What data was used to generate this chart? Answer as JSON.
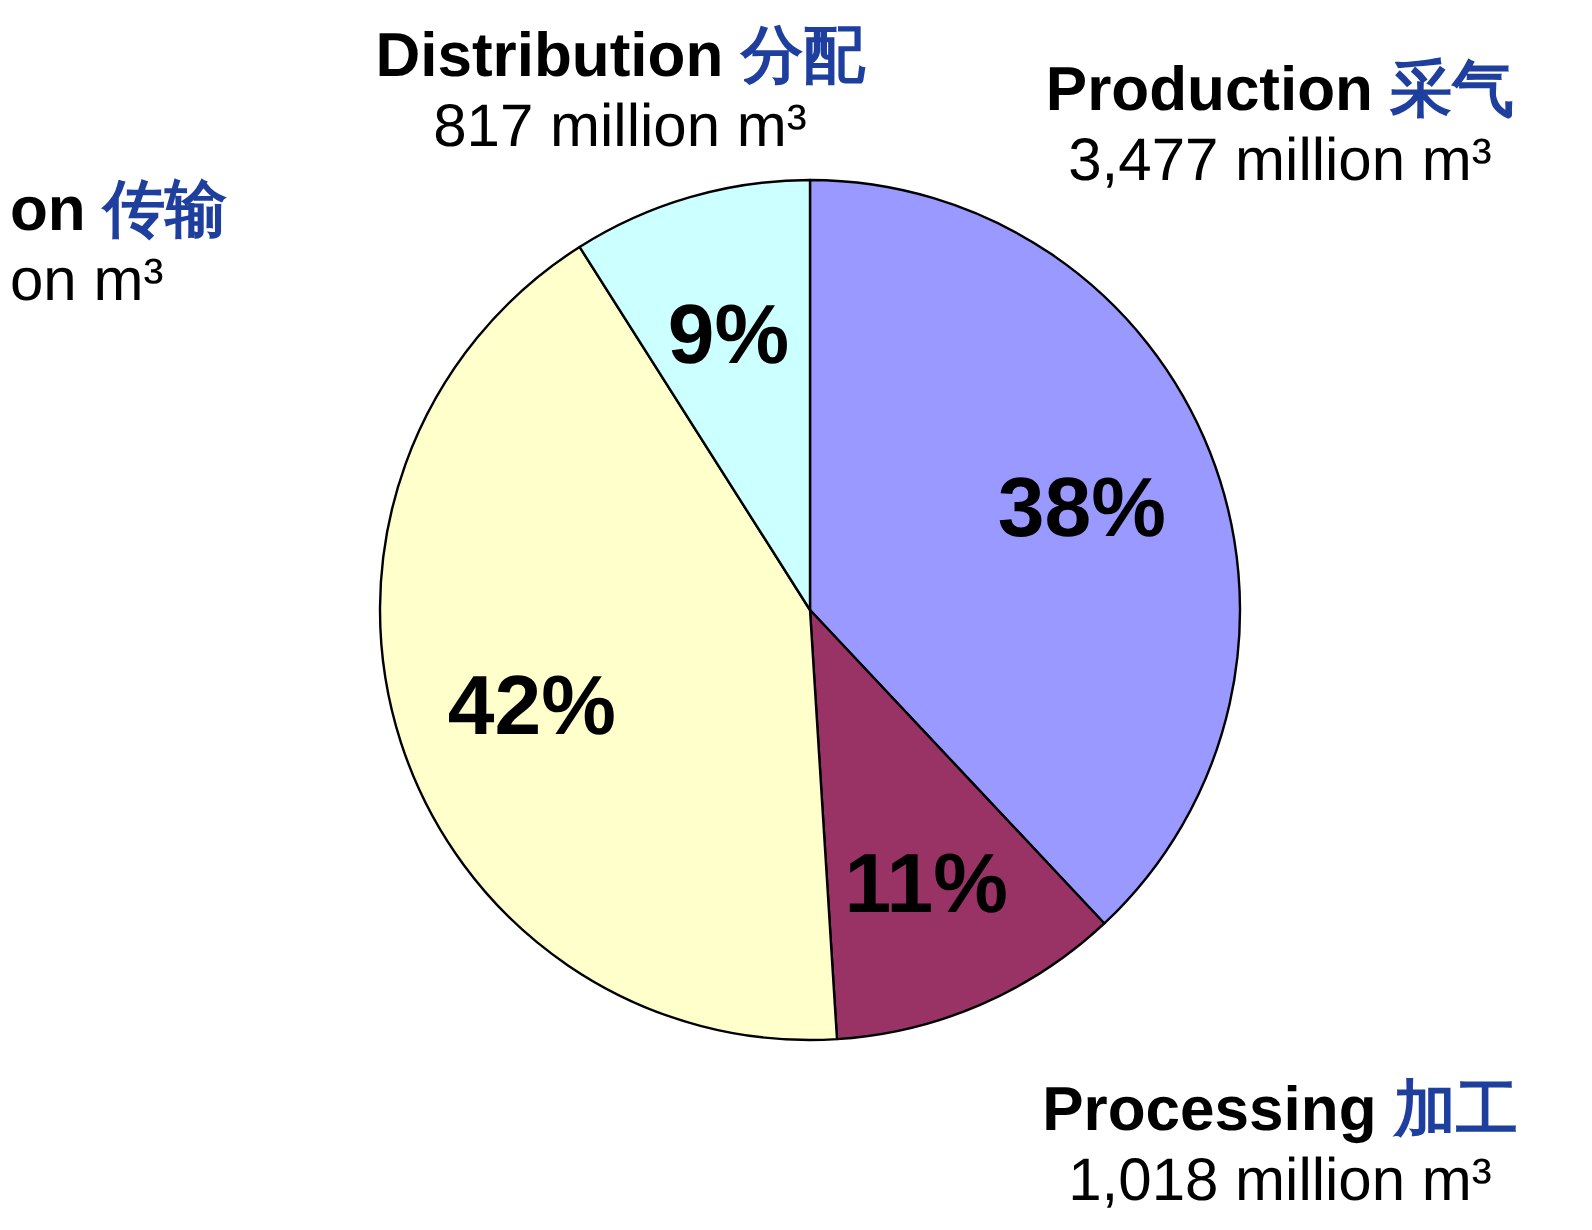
{
  "chart_data": {
    "type": "pie",
    "categories": [
      "Production 采气",
      "Processing 加工",
      "on 传输",
      "Distribution 分配"
    ],
    "values": [
      38,
      11,
      42,
      9
    ],
    "colors": [
      "#9999ff",
      "#993366",
      "#ffffcc",
      "#ccffff"
    ],
    "value_labels": [
      "38%",
      "11%",
      "42%",
      "9%"
    ],
    "annotations": [
      "3,477 million m³",
      "1,018 million m³",
      "on m³",
      "817 million m³"
    ]
  }
}
